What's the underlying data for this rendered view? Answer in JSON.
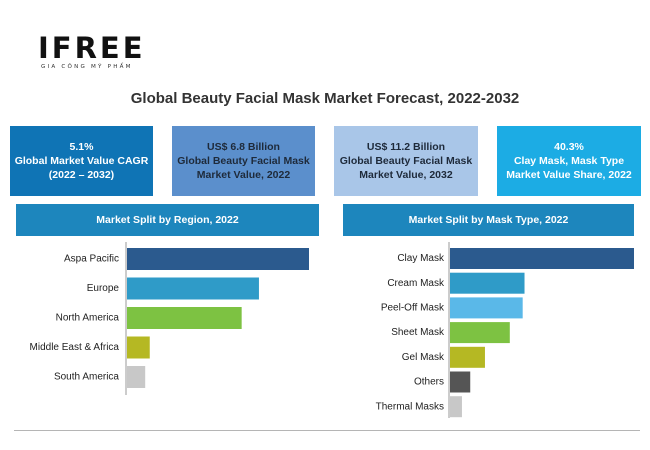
{
  "logo": {
    "mark": "IFREE",
    "tagline": "GIA CÔNG MỸ PHẨM"
  },
  "title": "Global Beauty Facial Mask Market Forecast, 2022-2032",
  "kpis": [
    {
      "lines": [
        "5.1%",
        "Global Market Value CAGR",
        "(2022 – 2032)"
      ],
      "bg": "#0f74b5",
      "fg": "#ffffff"
    },
    {
      "lines": [
        "US$ 6.8 Billion",
        "Global Beauty Facial Mask",
        "Market Value, 2022"
      ],
      "bg": "#5b8fcc",
      "fg": "#1e2a3a"
    },
    {
      "lines": [
        "US$ 11.2 Billion",
        "Global Beauty Facial Mask",
        "Market Value, 2032"
      ],
      "bg": "#a9c6e8",
      "fg": "#1e2a3a"
    },
    {
      "lines": [
        "40.3%",
        "Clay Mask, Mask Type",
        "Market Value Share, 2022"
      ],
      "bg": "#1cace4",
      "fg": "#ffffff"
    }
  ],
  "chart_data": [
    {
      "type": "bar",
      "orientation": "horizontal",
      "title": "Market Split by Region, 2022",
      "categories": [
        "Aspa Pacific",
        "Europe",
        "North America",
        "Middle East & Africa",
        "South America"
      ],
      "values": [
        100,
        72.5,
        63,
        12.5,
        10
      ],
      "colors": [
        "#2b5a8e",
        "#2f9bc8",
        "#7dc242",
        "#b5b823",
        "#c8c8c8"
      ],
      "xlim": [
        0,
        100
      ],
      "grid": false,
      "legend": "none"
    },
    {
      "type": "bar",
      "orientation": "horizontal",
      "title": "Market Split by Mask Type, 2022",
      "categories": [
        "Clay Mask",
        "Cream Mask",
        "Peel-Off Mask",
        "Sheet Mask",
        "Gel Mask",
        "Others",
        "Thermal Masks"
      ],
      "values": [
        100,
        40.5,
        39.5,
        32.5,
        19,
        11,
        6.5
      ],
      "colors": [
        "#2b5a8e",
        "#2f9bc8",
        "#5ab8e8",
        "#7dc242",
        "#b5b823",
        "#555555",
        "#c8c8c8"
      ],
      "xlim": [
        0,
        100
      ],
      "grid": false,
      "legend": "none"
    }
  ]
}
